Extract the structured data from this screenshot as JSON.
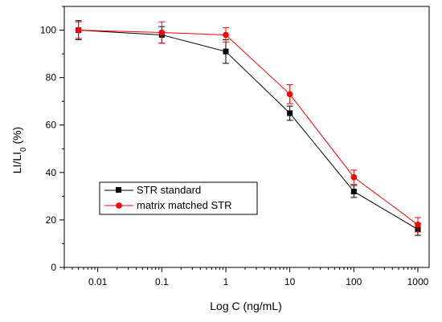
{
  "chart_data": {
    "type": "line",
    "xscale": "log",
    "xlabel": "Log C (ng/mL)",
    "ylabel": "LI/LI",
    "ylabel_sub": "0",
    "ylabel_suffix": " (%)",
    "xlim": [
      0.003,
      1500
    ],
    "ylim": [
      0,
      110
    ],
    "x_ticks": [
      0.01,
      0.1,
      1,
      10,
      100,
      1000
    ],
    "x_tick_labels": [
      "0.01",
      "0.1",
      "1",
      "10",
      "100",
      "1000"
    ],
    "y_ticks": [
      0,
      20,
      40,
      60,
      80,
      100
    ],
    "y_tick_labels": [
      "0",
      "20",
      "40",
      "60",
      "80",
      "100"
    ],
    "grid": false,
    "legend_position": "bottom-left",
    "series": [
      {
        "name": "STR standard",
        "color": "#000000",
        "marker": "square",
        "x": [
          0.005,
          0.1,
          1,
          10,
          100,
          1000
        ],
        "y": [
          100,
          98,
          91,
          65,
          32,
          16
        ],
        "err": [
          4,
          3.5,
          5,
          3,
          2.5,
          2.5
        ]
      },
      {
        "name": "matrix matched STR",
        "color": "#ff0000",
        "marker": "circle",
        "x": [
          0.005,
          0.1,
          1,
          10,
          100,
          1000
        ],
        "y": [
          100,
          99,
          98,
          73,
          38,
          18
        ],
        "err": [
          3.5,
          4.5,
          3,
          4,
          3,
          3
        ]
      }
    ]
  }
}
